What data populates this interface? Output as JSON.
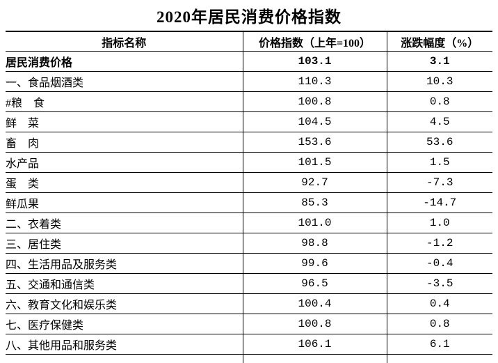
{
  "title": "2020年居民消费价格指数",
  "table": {
    "columns": [
      "指标名称",
      "价格指数（上年=100）",
      "涨跌幅度（%）"
    ],
    "rows": [
      {
        "name": "居民消费价格",
        "index": "103.1",
        "change": "3.1",
        "bold": true,
        "indent": 0
      },
      {
        "name": "一、食品烟酒类",
        "index": "110.3",
        "change": "10.3",
        "bold": false,
        "indent": 0
      },
      {
        "name": "#粮　食",
        "index": "100.8",
        "change": "0.8",
        "bold": false,
        "indent": 1
      },
      {
        "name": "鲜　菜",
        "index": "104.5",
        "change": "4.5",
        "bold": false,
        "indent": 1
      },
      {
        "name": "畜　肉",
        "index": "153.6",
        "change": "53.6",
        "bold": false,
        "indent": 1
      },
      {
        "name": "水产品",
        "index": "101.5",
        "change": "1.5",
        "bold": false,
        "indent": 1
      },
      {
        "name": "蛋　类",
        "index": "92.7",
        "change": "-7.3",
        "bold": false,
        "indent": 1
      },
      {
        "name": "鲜瓜果",
        "index": "85.3",
        "change": "-14.7",
        "bold": false,
        "indent": 1
      },
      {
        "name": "二、衣着类",
        "index": "101.0",
        "change": "1.0",
        "bold": false,
        "indent": 0
      },
      {
        "name": "三、居住类",
        "index": "98.8",
        "change": "-1.2",
        "bold": false,
        "indent": 0
      },
      {
        "name": "四、生活用品及服务类",
        "index": "99.6",
        "change": "-0.4",
        "bold": false,
        "indent": 0
      },
      {
        "name": "五、交通和通信类",
        "index": "96.5",
        "change": "-3.5",
        "bold": false,
        "indent": 0
      },
      {
        "name": "六、教育文化和娱乐类",
        "index": "100.4",
        "change": "0.4",
        "bold": false,
        "indent": 0
      },
      {
        "name": "七、医疗保健类",
        "index": "100.8",
        "change": "0.8",
        "bold": false,
        "indent": 0
      },
      {
        "name": "八、其他用品和服务类",
        "index": "106.1",
        "change": "6.1",
        "bold": false,
        "indent": 0
      }
    ]
  }
}
